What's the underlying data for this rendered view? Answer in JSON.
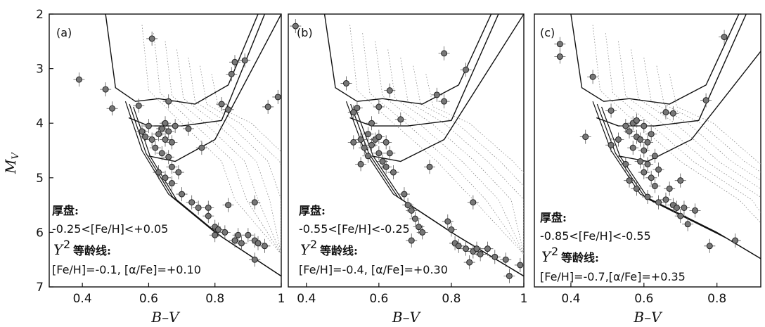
{
  "chart_data": [
    {
      "type": "scatter",
      "panel_label": "(a)",
      "xlabel": "B–V",
      "ylabel_main": "M",
      "ylabel_sub": "V",
      "xlim": [
        0.3,
        1.0
      ],
      "ylim": [
        7,
        2
      ],
      "xticks": [
        0.4,
        0.6,
        0.8,
        1
      ],
      "yticks": [
        2,
        3,
        4,
        5,
        6,
        7
      ],
      "annotation": [
        "厚盘:",
        "-0.25<[Fe/H]<+0.05",
        "Y",
        "2",
        "等龄线:",
        "[Fe/H]=-0.1, [α/Fe]=+0.10"
      ],
      "points": [
        [
          0.39,
          3.2
        ],
        [
          0.47,
          3.38
        ],
        [
          0.49,
          3.73
        ],
        [
          0.57,
          3.68
        ],
        [
          0.61,
          2.45
        ],
        [
          0.58,
          4.15
        ],
        [
          0.59,
          4.25
        ],
        [
          0.6,
          4.05
        ],
        [
          0.61,
          4.3
        ],
        [
          0.62,
          4.45
        ],
        [
          0.63,
          4.2
        ],
        [
          0.64,
          4.1
        ],
        [
          0.64,
          4.55
        ],
        [
          0.65,
          4.3
        ],
        [
          0.65,
          4.0
        ],
        [
          0.66,
          4.15
        ],
        [
          0.66,
          4.62
        ],
        [
          0.66,
          3.6
        ],
        [
          0.67,
          4.35
        ],
        [
          0.67,
          4.8
        ],
        [
          0.68,
          4.05
        ],
        [
          0.63,
          4.9
        ],
        [
          0.65,
          5.0
        ],
        [
          0.67,
          5.1
        ],
        [
          0.69,
          4.9
        ],
        [
          0.72,
          4.1
        ],
        [
          0.7,
          5.3
        ],
        [
          0.73,
          5.45
        ],
        [
          0.75,
          5.55
        ],
        [
          0.76,
          4.45
        ],
        [
          0.78,
          5.55
        ],
        [
          0.78,
          5.7
        ],
        [
          0.8,
          5.9
        ],
        [
          0.8,
          6.05
        ],
        [
          0.81,
          5.95
        ],
        [
          0.83,
          6.0
        ],
        [
          0.84,
          5.5
        ],
        [
          0.86,
          6.15
        ],
        [
          0.87,
          6.05
        ],
        [
          0.88,
          6.2
        ],
        [
          0.9,
          6.05
        ],
        [
          0.92,
          6.15
        ],
        [
          0.93,
          6.2
        ],
        [
          0.95,
          6.25
        ],
        [
          0.85,
          3.1
        ],
        [
          0.86,
          2.88
        ],
        [
          0.89,
          2.85
        ],
        [
          0.82,
          3.65
        ],
        [
          0.84,
          3.75
        ],
        [
          0.92,
          5.45
        ],
        [
          0.96,
          3.7
        ],
        [
          0.99,
          3.52
        ],
        [
          0.92,
          6.5
        ]
      ]
    },
    {
      "type": "scatter",
      "panel_label": "(b)",
      "xlabel": "B–V",
      "xlim": [
        0.35,
        1.0
      ],
      "ylim": [
        7,
        2
      ],
      "xticks": [
        0.4,
        0.6,
        0.8,
        1
      ],
      "annotation": [
        "厚盘:",
        "-0.55<[Fe/H]<-0.25",
        "Y",
        "2",
        "等龄线:",
        "[Fe/H]=-0.4, [α/Fe]=+0.30"
      ],
      "points": [
        [
          0.37,
          2.22
        ],
        [
          0.51,
          3.27
        ],
        [
          0.53,
          3.8
        ],
        [
          0.54,
          3.72
        ],
        [
          0.53,
          4.35
        ],
        [
          0.55,
          4.3
        ],
        [
          0.56,
          4.45
        ],
        [
          0.57,
          4.2
        ],
        [
          0.57,
          4.6
        ],
        [
          0.58,
          4.0
        ],
        [
          0.58,
          4.4
        ],
        [
          0.59,
          4.3
        ],
        [
          0.6,
          4.25
        ],
        [
          0.6,
          4.55
        ],
        [
          0.61,
          4.7
        ],
        [
          0.62,
          4.35
        ],
        [
          0.62,
          4.8
        ],
        [
          0.63,
          4.55
        ],
        [
          0.63,
          3.4
        ],
        [
          0.64,
          4.9
        ],
        [
          0.55,
          4.75
        ],
        [
          0.6,
          3.7
        ],
        [
          0.66,
          3.93
        ],
        [
          0.67,
          5.3
        ],
        [
          0.68,
          5.5
        ],
        [
          0.69,
          5.6
        ],
        [
          0.7,
          5.75
        ],
        [
          0.71,
          5.9
        ],
        [
          0.72,
          6.0
        ],
        [
          0.74,
          4.8
        ],
        [
          0.76,
          3.48
        ],
        [
          0.78,
          3.6
        ],
        [
          0.78,
          2.72
        ],
        [
          0.84,
          3.02
        ],
        [
          0.86,
          5.45
        ],
        [
          0.79,
          5.8
        ],
        [
          0.81,
          6.2
        ],
        [
          0.82,
          6.25
        ],
        [
          0.84,
          6.3
        ],
        [
          0.86,
          6.35
        ],
        [
          0.87,
          6.3
        ],
        [
          0.88,
          6.4
        ],
        [
          0.9,
          6.3
        ],
        [
          0.92,
          6.45
        ],
        [
          0.95,
          6.5
        ],
        [
          0.96,
          6.8
        ],
        [
          0.99,
          6.6
        ],
        [
          0.69,
          6.15
        ],
        [
          0.8,
          5.95
        ],
        [
          0.85,
          6.55
        ]
      ]
    },
    {
      "type": "scatter",
      "panel_label": "(c)",
      "xlabel": "B–V",
      "xlim": [
        0.3,
        0.92
      ],
      "ylim": [
        7,
        2
      ],
      "xticks": [
        0.4,
        0.6,
        0.8
      ],
      "annotation": [
        "厚盘:",
        "-0.85<[Fe/H]<-0.55",
        "Y",
        "2",
        "等龄线:",
        "[Fe/H]=-0.7,[α/Fe]=+0.35"
      ],
      "points": [
        [
          0.37,
          2.55
        ],
        [
          0.37,
          2.78
        ],
        [
          0.46,
          3.15
        ],
        [
          0.44,
          4.25
        ],
        [
          0.51,
          3.77
        ],
        [
          0.51,
          4.4
        ],
        [
          0.53,
          4.3
        ],
        [
          0.55,
          4.05
        ],
        [
          0.56,
          4.15
        ],
        [
          0.57,
          4.0
        ],
        [
          0.57,
          4.45
        ],
        [
          0.58,
          4.25
        ],
        [
          0.58,
          3.95
        ],
        [
          0.59,
          4.3
        ],
        [
          0.59,
          4.7
        ],
        [
          0.6,
          4.05
        ],
        [
          0.6,
          4.5
        ],
        [
          0.6,
          4.9
        ],
        [
          0.61,
          4.35
        ],
        [
          0.61,
          4.75
        ],
        [
          0.62,
          4.2
        ],
        [
          0.62,
          5.0
        ],
        [
          0.63,
          4.6
        ],
        [
          0.63,
          5.15
        ],
        [
          0.64,
          4.85
        ],
        [
          0.55,
          4.75
        ],
        [
          0.56,
          5.05
        ],
        [
          0.58,
          5.2
        ],
        [
          0.61,
          5.35
        ],
        [
          0.64,
          5.45
        ],
        [
          0.66,
          5.4
        ],
        [
          0.66,
          3.8
        ],
        [
          0.68,
          3.82
        ],
        [
          0.68,
          5.5
        ],
        [
          0.69,
          5.55
        ],
        [
          0.7,
          5.7
        ],
        [
          0.71,
          5.55
        ],
        [
          0.72,
          5.85
        ],
        [
          0.74,
          5.6
        ],
        [
          0.77,
          3.58
        ],
        [
          0.78,
          6.25
        ],
        [
          0.82,
          2.42
        ],
        [
          0.85,
          6.15
        ],
        [
          0.7,
          5.05
        ],
        [
          0.67,
          5.2
        ]
      ]
    }
  ]
}
